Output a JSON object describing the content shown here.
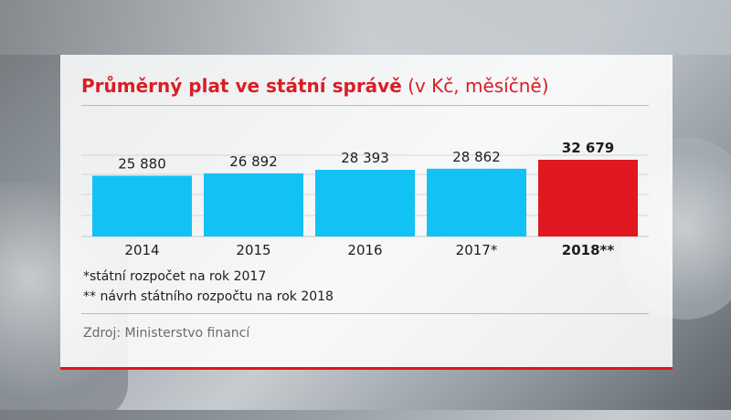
{
  "chart_data": {
    "type": "bar",
    "title": "Průměrný plat ve státní správě",
    "subtitle": "(v Kč, měsíčně)",
    "categories": [
      "2014",
      "2015",
      "2016",
      "2017*",
      "2018**"
    ],
    "values": [
      25880,
      26892,
      28393,
      28862,
      32679
    ],
    "value_labels": [
      "25 880",
      "26 892",
      "28 393",
      "28 862",
      "32 679"
    ],
    "bar_colors": [
      "#12c2f5",
      "#12c2f5",
      "#12c2f5",
      "#12c2f5",
      "#e0181f"
    ],
    "highlight_index": 4,
    "grid": true
  },
  "notes": [
    "*státní rozpočet na rok 2017",
    "** návrh státního rozpočtu na rok 2018"
  ],
  "source": "Zdroj: Ministerstvo financí",
  "colors": {
    "accent": "#d81e24",
    "bar": "#12c2f5",
    "bar_highlight": "#e0181f"
  }
}
